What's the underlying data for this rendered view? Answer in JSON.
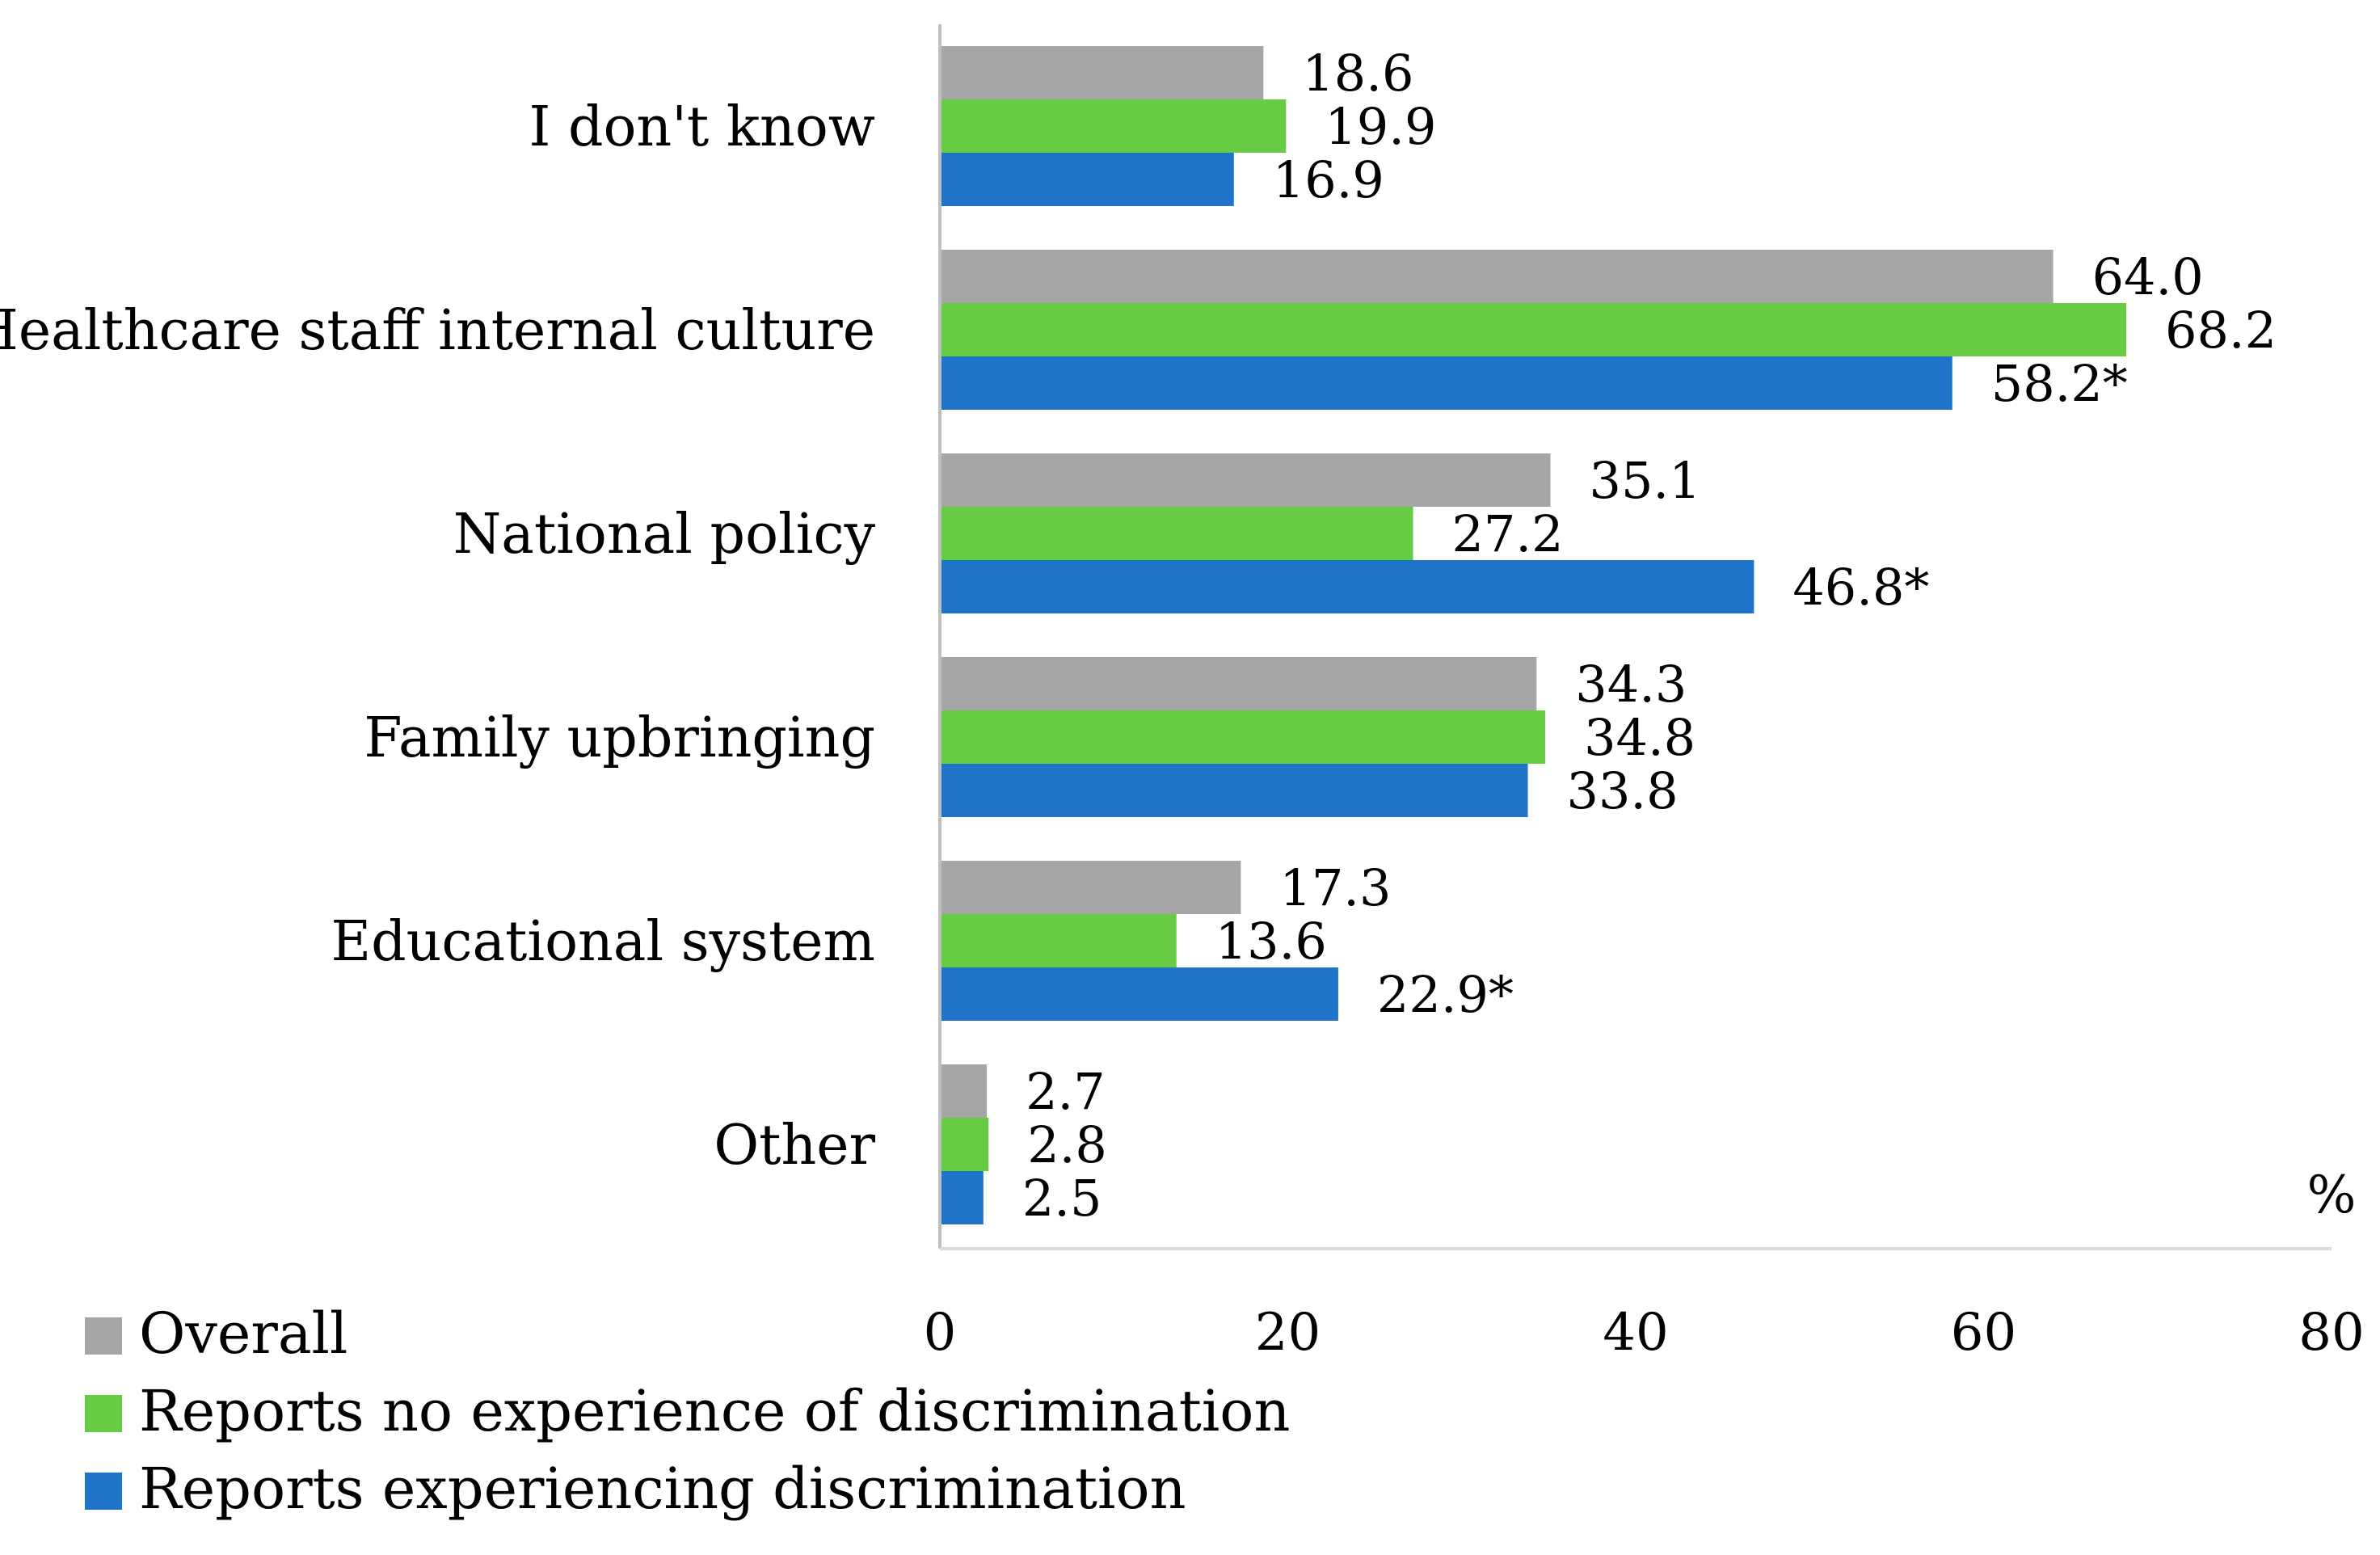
{
  "chart_data": {
    "type": "bar",
    "orientation": "horizontal",
    "title": "",
    "xlabel": "",
    "ylabel": "",
    "unit_label": "%",
    "xlim": [
      0,
      80
    ],
    "x_ticks": [
      "0",
      "20",
      "40",
      "60",
      "80"
    ],
    "grid": false,
    "legend_position": "bottom-left",
    "categories": [
      "I don't know",
      "Healthcare staff internal culture",
      "National policy",
      "Family upbringing",
      "Educational system",
      "Other"
    ],
    "series": [
      {
        "name": "Overall",
        "color": "#a6a6a6",
        "values": [
          18.6,
          64.0,
          35.1,
          34.3,
          17.3,
          2.7
        ],
        "labels": [
          "18.6",
          "64.0",
          "35.1",
          "34.3",
          "17.3",
          "2.7"
        ]
      },
      {
        "name": "Reports no experience of discrimination",
        "color": "#66cc44",
        "values": [
          19.9,
          68.2,
          27.2,
          34.8,
          13.6,
          2.8
        ],
        "labels": [
          "19.9",
          "68.2",
          "27.2",
          "34.8",
          "13.6",
          "2.8"
        ]
      },
      {
        "name": "Reports experiencing discrimination",
        "color": "#1f74c9",
        "values": [
          16.9,
          58.2,
          46.8,
          33.8,
          22.9,
          2.5
        ],
        "labels": [
          "16.9",
          "58.2*",
          "46.8*",
          "33.8",
          "22.9*",
          "2.5"
        ]
      }
    ]
  }
}
